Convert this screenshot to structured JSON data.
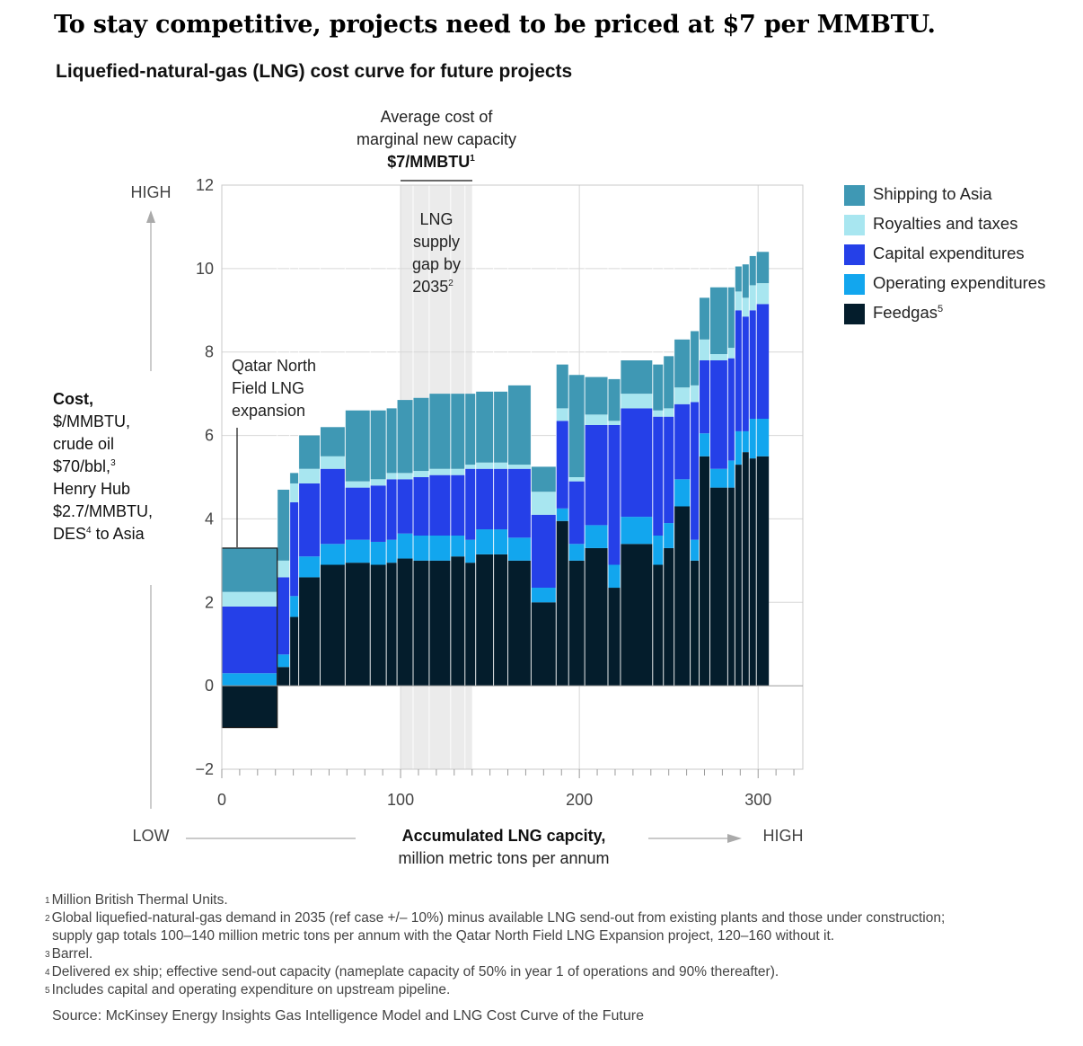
{
  "headline": "To stay competitive, projects need to be priced at $7 per MMBTU.",
  "subtitle": "Liquefied-natural-gas (LNG) cost curve for future projects",
  "annotations": {
    "avg_cost_line1": "Average cost of",
    "avg_cost_line2": "marginal new capacity",
    "avg_cost_value": "$7/MMBTU",
    "avg_cost_sup": "1",
    "gap_line1": "LNG",
    "gap_line2": "supply",
    "gap_line3": "gap by",
    "gap_line4": "2035",
    "gap_sup": "2",
    "qatar_line1": "Qatar North",
    "qatar_line2": "Field LNG",
    "qatar_line3": "expansion"
  },
  "y_axis": {
    "high": "HIGH",
    "low": "LOW",
    "title_bold": "Cost,",
    "l1": "$/MMBTU,",
    "l2": "crude oil",
    "l3": "$70/bbl,",
    "l3_sup": "3",
    "l4": "Henry Hub",
    "l5": "$2.7/MMBTU,",
    "l6": "DES",
    "l6_sup": "4",
    "l6_rest": " to Asia"
  },
  "x_axis": {
    "low": "LOW",
    "high": "HIGH",
    "title_bold": "Accumulated LNG capcity,",
    "title_rest": "million metric tons per annum"
  },
  "legend": [
    {
      "label": "Shipping to Asia",
      "sup": ""
    },
    {
      "label": "Royalties and taxes",
      "sup": ""
    },
    {
      "label": "Capital expenditures",
      "sup": ""
    },
    {
      "label": "Operating expenditures",
      "sup": ""
    },
    {
      "label": "Feedgas",
      "sup": "5"
    }
  ],
  "footnotes": [
    {
      "n": "1",
      "text": "Million British Thermal Units."
    },
    {
      "n": "2",
      "text": "Global liquefied-natural-gas demand in 2035 (ref case +/– 10%) minus available LNG send-out from existing plants and those under construction;"
    },
    {
      "n": "",
      "text": "supply gap totals 100–140 million metric tons per annum with the Qatar North Field LNG Expansion project, 120–160 without it."
    },
    {
      "n": "3",
      "text": "Barrel."
    },
    {
      "n": "4",
      "text": "Delivered ex ship; effective send-out capacity (nameplate capacity of 50% in year 1 of operations and 90% thereafter)."
    },
    {
      "n": "5",
      "text": "Includes capital and operating expenditure on upstream pipeline."
    }
  ],
  "source": "Source: McKinsey Energy Insights Gas Intelligence Model and LNG Cost Curve of the Future",
  "colors": {
    "shipping": "#3f98b4",
    "royalties": "#a8e6f0",
    "capex": "#2540e8",
    "opex": "#12a6ee",
    "feedgas": "#041d2c",
    "gap_band": "#ebebeb"
  },
  "chart_data": {
    "type": "bar",
    "variant": "stacked-variable-width cost curve",
    "title": "Liquefied-natural-gas (LNG) cost curve for future projects",
    "xlabel": "Accumulated LNG capcity, million metric tons per annum",
    "ylabel": "Cost, $/MMBTU",
    "xlim": [
      0,
      325
    ],
    "ylim": [
      -2,
      12
    ],
    "x_ticks": [
      0,
      100,
      200,
      300
    ],
    "y_ticks": [
      -2,
      0,
      2,
      4,
      6,
      8,
      10,
      12
    ],
    "supply_gap_range": [
      100,
      140
    ],
    "marginal_cost": 7,
    "series_order": [
      "Feedgas",
      "Operating expenditures",
      "Capital expenditures",
      "Royalties and taxes",
      "Shipping to Asia"
    ],
    "projects": [
      {
        "x0": 0,
        "x1": 31,
        "feedgas": -1.0,
        "opex": 0.3,
        "capex": 1.6,
        "royalties": 0.35,
        "shipping": 1.05
      },
      {
        "x0": 31,
        "x1": 38,
        "feedgas": 0.45,
        "opex": 0.3,
        "capex": 1.85,
        "royalties": 0.4,
        "shipping": 1.7
      },
      {
        "x0": 38,
        "x1": 43,
        "feedgas": 1.65,
        "opex": 0.5,
        "capex": 2.25,
        "royalties": 0.45,
        "shipping": 0.25
      },
      {
        "x0": 43,
        "x1": 55,
        "feedgas": 2.6,
        "opex": 0.5,
        "capex": 1.75,
        "royalties": 0.35,
        "shipping": 0.8
      },
      {
        "x0": 55,
        "x1": 69,
        "feedgas": 2.9,
        "opex": 0.5,
        "capex": 1.8,
        "royalties": 0.3,
        "shipping": 0.7
      },
      {
        "x0": 69,
        "x1": 83,
        "feedgas": 2.95,
        "opex": 0.55,
        "capex": 1.25,
        "royalties": 0.15,
        "shipping": 1.7
      },
      {
        "x0": 83,
        "x1": 92,
        "feedgas": 2.9,
        "opex": 0.55,
        "capex": 1.35,
        "royalties": 0.15,
        "shipping": 1.65
      },
      {
        "x0": 92,
        "x1": 98,
        "feedgas": 2.95,
        "opex": 0.55,
        "capex": 1.45,
        "royalties": 0.15,
        "shipping": 1.55
      },
      {
        "x0": 98,
        "x1": 107,
        "feedgas": 3.05,
        "opex": 0.6,
        "capex": 1.3,
        "royalties": 0.15,
        "shipping": 1.75
      },
      {
        "x0": 107,
        "x1": 116,
        "feedgas": 3.0,
        "opex": 0.6,
        "capex": 1.4,
        "royalties": 0.15,
        "shipping": 1.75
      },
      {
        "x0": 116,
        "x1": 128,
        "feedgas": 3.0,
        "opex": 0.6,
        "capex": 1.45,
        "royalties": 0.15,
        "shipping": 1.8
      },
      {
        "x0": 128,
        "x1": 136,
        "feedgas": 3.1,
        "opex": 0.5,
        "capex": 1.45,
        "royalties": 0.15,
        "shipping": 1.8
      },
      {
        "x0": 136,
        "x1": 142,
        "feedgas": 2.95,
        "opex": 0.55,
        "capex": 1.7,
        "royalties": 0.1,
        "shipping": 1.7
      },
      {
        "x0": 142,
        "x1": 152,
        "feedgas": 3.15,
        "opex": 0.6,
        "capex": 1.45,
        "royalties": 0.15,
        "shipping": 1.7
      },
      {
        "x0": 152,
        "x1": 160,
        "feedgas": 3.15,
        "opex": 0.6,
        "capex": 1.45,
        "royalties": 0.15,
        "shipping": 1.7
      },
      {
        "x0": 160,
        "x1": 173,
        "feedgas": 3.0,
        "opex": 0.55,
        "capex": 1.65,
        "royalties": 0.1,
        "shipping": 1.9
      },
      {
        "x0": 173,
        "x1": 187,
        "feedgas": 2.0,
        "opex": 0.35,
        "capex": 1.75,
        "royalties": 0.55,
        "shipping": 0.6
      },
      {
        "x0": 187,
        "x1": 194,
        "feedgas": 3.95,
        "opex": 0.3,
        "capex": 2.1,
        "royalties": 0.3,
        "shipping": 1.05
      },
      {
        "x0": 194,
        "x1": 203,
        "feedgas": 3.0,
        "opex": 0.4,
        "capex": 1.5,
        "royalties": 0.1,
        "shipping": 2.45
      },
      {
        "x0": 203,
        "x1": 216,
        "feedgas": 3.3,
        "opex": 0.55,
        "capex": 2.4,
        "royalties": 0.25,
        "shipping": 0.9
      },
      {
        "x0": 216,
        "x1": 223,
        "feedgas": 2.35,
        "opex": 0.55,
        "capex": 3.35,
        "royalties": 0.1,
        "shipping": 1.0
      },
      {
        "x0": 223,
        "x1": 241,
        "feedgas": 3.4,
        "opex": 0.65,
        "capex": 2.6,
        "royalties": 0.35,
        "shipping": 0.8
      },
      {
        "x0": 241,
        "x1": 247,
        "feedgas": 2.9,
        "opex": 0.7,
        "capex": 2.85,
        "royalties": 0.15,
        "shipping": 1.1
      },
      {
        "x0": 247,
        "x1": 253,
        "feedgas": 3.3,
        "opex": 0.6,
        "capex": 2.55,
        "royalties": 0.2,
        "shipping": 1.25
      },
      {
        "x0": 253,
        "x1": 262,
        "feedgas": 4.3,
        "opex": 0.65,
        "capex": 1.8,
        "royalties": 0.4,
        "shipping": 1.15
      },
      {
        "x0": 262,
        "x1": 267,
        "feedgas": 3.0,
        "opex": 0.5,
        "capex": 3.3,
        "royalties": 0.4,
        "shipping": 1.3
      },
      {
        "x0": 267,
        "x1": 273,
        "feedgas": 5.5,
        "opex": 0.55,
        "capex": 1.75,
        "royalties": 0.5,
        "shipping": 1.0
      },
      {
        "x0": 273,
        "x1": 283,
        "feedgas": 4.75,
        "opex": 0.45,
        "capex": 2.6,
        "royalties": 0.15,
        "shipping": 1.6
      },
      {
        "x0": 283,
        "x1": 287,
        "feedgas": 4.75,
        "opex": 0.65,
        "capex": 2.45,
        "royalties": 0.25,
        "shipping": 1.45
      },
      {
        "x0": 287,
        "x1": 291,
        "feedgas": 5.3,
        "opex": 0.8,
        "capex": 2.9,
        "royalties": 0.45,
        "shipping": 0.6
      },
      {
        "x0": 291,
        "x1": 295,
        "feedgas": 5.6,
        "opex": 0.5,
        "capex": 2.75,
        "royalties": 0.45,
        "shipping": 0.8
      },
      {
        "x0": 295,
        "x1": 299,
        "feedgas": 5.45,
        "opex": 0.95,
        "capex": 2.6,
        "royalties": 0.6,
        "shipping": 0.7
      },
      {
        "x0": 299,
        "x1": 306,
        "feedgas": 5.5,
        "opex": 0.9,
        "capex": 2.75,
        "royalties": 0.5,
        "shipping": 0.75
      }
    ]
  }
}
